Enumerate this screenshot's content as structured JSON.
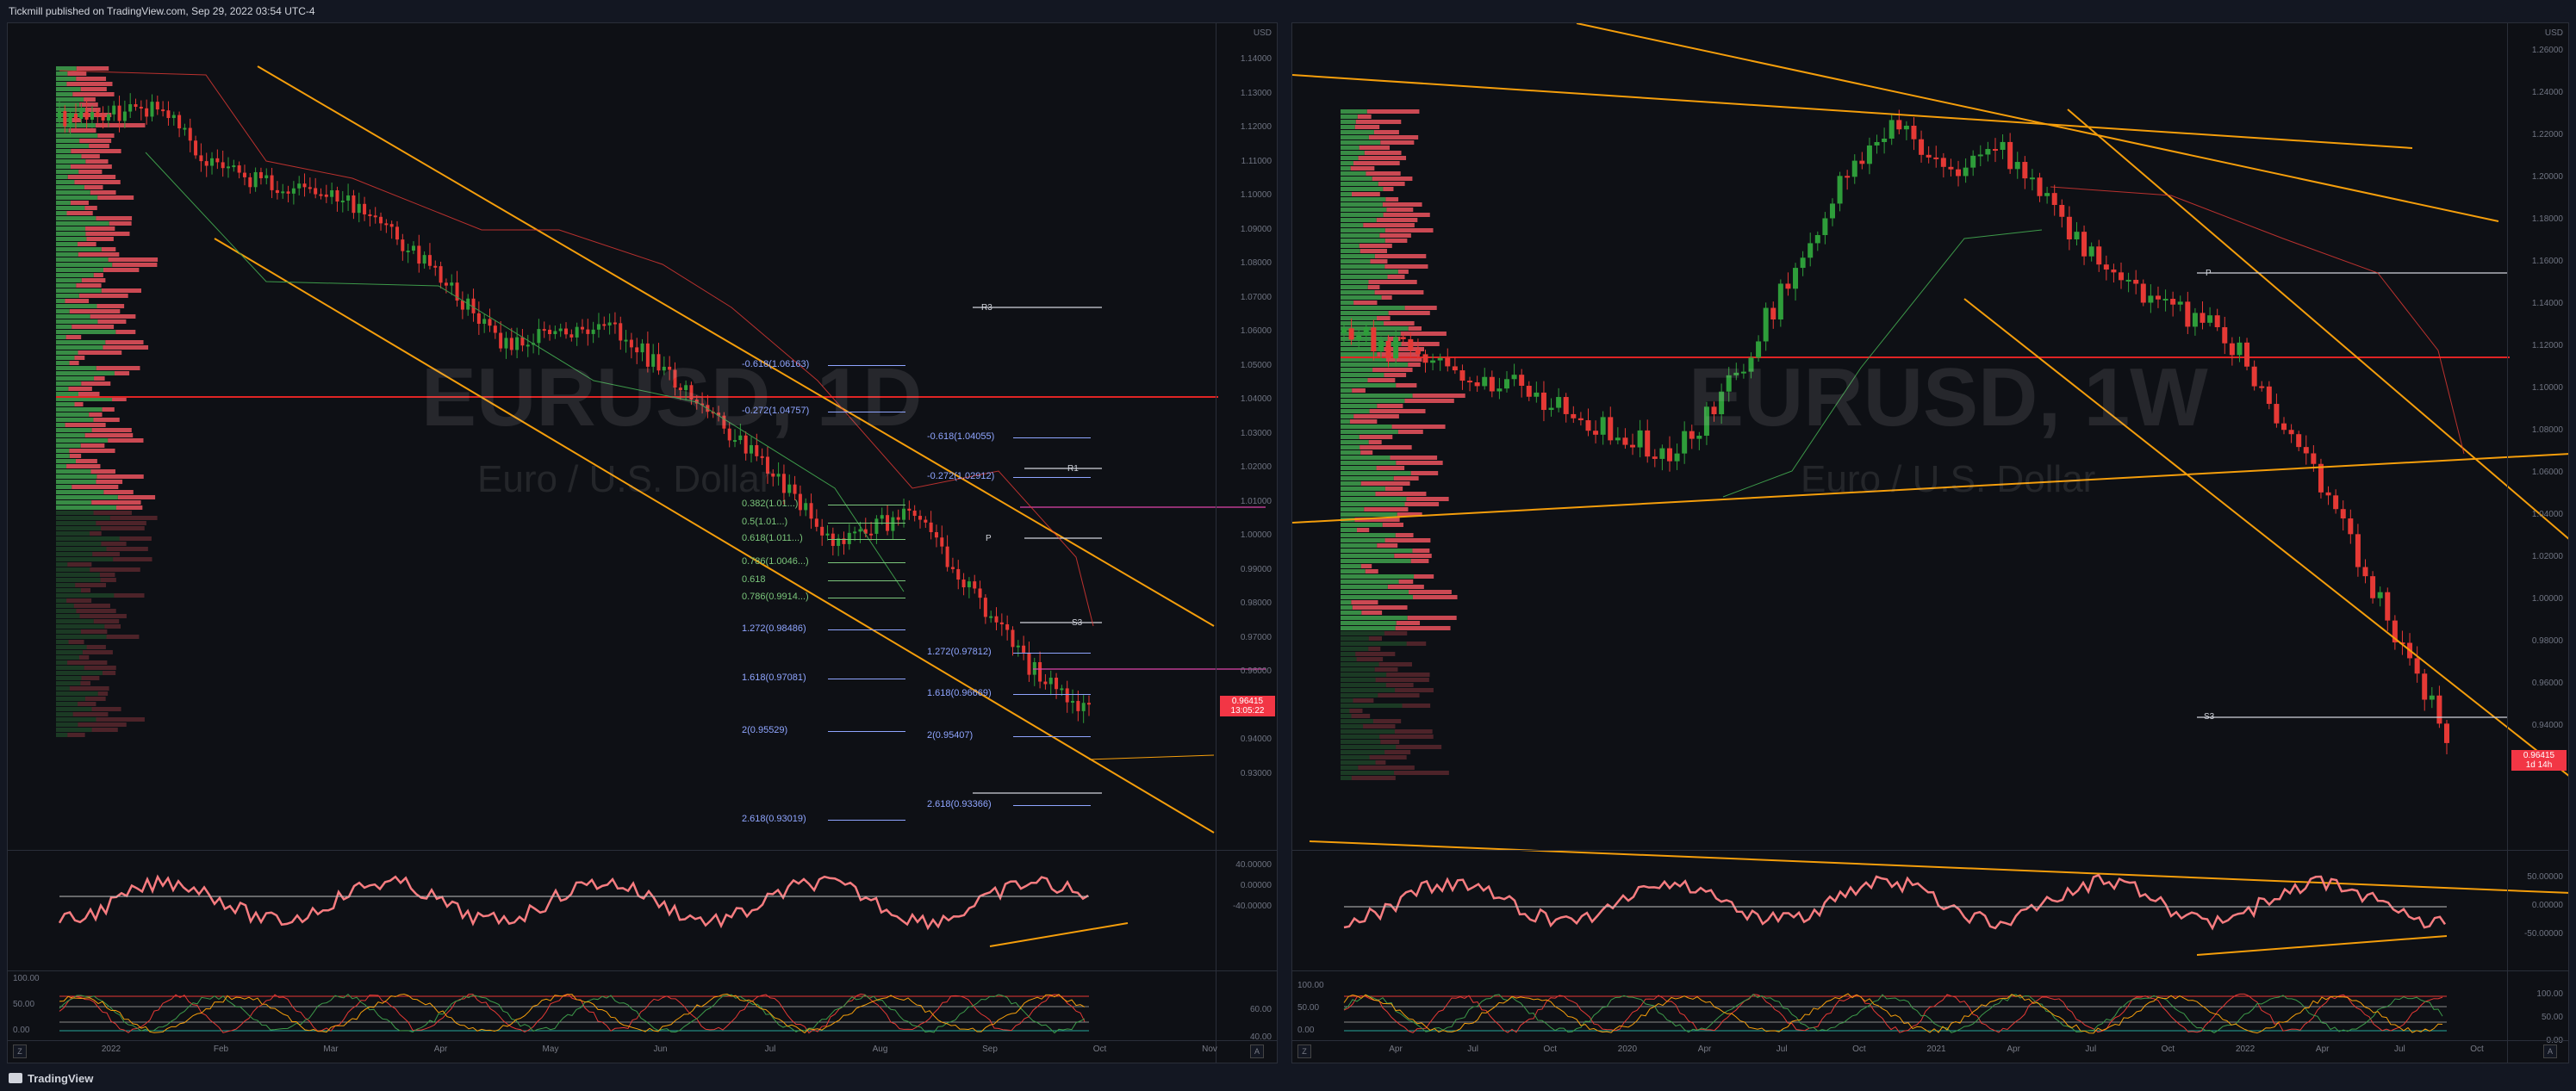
{
  "header": {
    "publish_text": "Tickmill published on TradingView.com, Sep 29, 2022 03:54 UTC-4"
  },
  "footer": {
    "brand": "TradingView"
  },
  "left_chart": {
    "symbol": "EURUSD, 1D",
    "description": "Euro / U.S. Dollar",
    "currency": "USD",
    "price_axis": [
      "1.14000",
      "1.13000",
      "1.12000",
      "1.11000",
      "1.10000",
      "1.09000",
      "1.08000",
      "1.07000",
      "1.06000",
      "1.05000",
      "1.04000",
      "1.03000",
      "1.02000",
      "1.01000",
      "1.00000",
      "0.99000",
      "0.98000",
      "0.97000",
      "0.96000",
      "0.95000",
      "0.94000",
      "0.93000"
    ],
    "last_price": "0.96415",
    "countdown": "13:05:22",
    "time_axis": [
      "2022",
      "Feb",
      "Mar",
      "Apr",
      "May",
      "Jun",
      "Jul",
      "Aug",
      "Sep",
      "Oct",
      "Nov"
    ],
    "rsi_axis": [
      "40.00000",
      "0.00000",
      "-40.00000"
    ],
    "stoch_axis": [
      "100.00",
      "50.00",
      "0.00"
    ],
    "stoch_axis_right": [
      "60.00",
      "40.00"
    ],
    "pivots": [
      "R3",
      "R1",
      "P",
      "S3"
    ],
    "fib_left": [
      "-0.618(1.06163)",
      "-0.272(1.04757)",
      "1.272(0.98486)",
      "1.618(0.97081)",
      "2(0.95529)",
      "2.618(0.93019)"
    ],
    "fib_mid": [
      "-0.618(1.04055)",
      "-0.272(1.02912)",
      "1.272(0.97812)",
      "1.618(0.96669)",
      "2(0.95407)",
      "2.618(0.93366)"
    ],
    "fib_green": [
      "0.382(1.01...)",
      "0.5(1.01...)",
      "0.618(1.011...)",
      "0.786(1.0046...)",
      "0.618",
      "0.786(0.9914...)"
    ],
    "scale_buttons": [
      "Z",
      "A"
    ]
  },
  "right_chart": {
    "symbol": "EURUSD, 1W",
    "description": "Euro / U.S. Dollar",
    "currency": "USD",
    "price_axis": [
      "1.26000",
      "1.24000",
      "1.22000",
      "1.20000",
      "1.18000",
      "1.16000",
      "1.14000",
      "1.12000",
      "1.10000",
      "1.08000",
      "1.06000",
      "1.04000",
      "1.02000",
      "1.00000",
      "0.98000",
      "0.96000",
      "0.94000",
      "0.92000"
    ],
    "last_price": "0.96415",
    "countdown": "1d 14h",
    "time_axis": [
      "Apr",
      "Jul",
      "Oct",
      "2020",
      "Apr",
      "Jul",
      "Oct",
      "2021",
      "Apr",
      "Jul",
      "Oct",
      "2022",
      "Apr",
      "Jul",
      "Oct"
    ],
    "rsi_axis": [
      "50.00000",
      "0.00000",
      "-50.00000"
    ],
    "stoch_axis": [
      "100.00",
      "50.00",
      "0.00"
    ],
    "pivots": [
      "P",
      "S3"
    ],
    "scale_buttons": [
      "Z",
      "A"
    ]
  },
  "colors": {
    "bull": "#26a69a",
    "bull_candle": "#2e9d3a",
    "bear": "#e53935",
    "trend": "#f59e0b",
    "fib_blue": "#4c6edb",
    "pivot": "#d1d4dc",
    "rsi": "#f77c80",
    "price_tag": "#f23645"
  }
}
